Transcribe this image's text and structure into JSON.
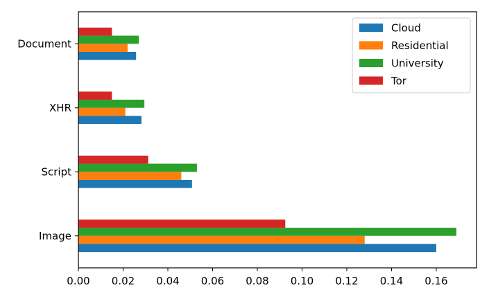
{
  "chart_data": {
    "type": "bar",
    "orientation": "horizontal",
    "categories": [
      "Image",
      "Script",
      "XHR",
      "Document"
    ],
    "series": [
      {
        "name": "Cloud",
        "color": "#1f77b4",
        "values": [
          0.16,
          0.0508,
          0.0282,
          0.0258
        ]
      },
      {
        "name": "Residential",
        "color": "#ff7f0e",
        "values": [
          0.128,
          0.046,
          0.021,
          0.022
        ]
      },
      {
        "name": "University",
        "color": "#2ca02c",
        "values": [
          0.169,
          0.053,
          0.0295,
          0.027
        ]
      },
      {
        "name": "Tor",
        "color": "#d62728",
        "values": [
          0.0925,
          0.0312,
          0.015,
          0.015
        ]
      }
    ],
    "xlim": [
      0,
      0.178
    ],
    "xticks": [
      "0.00",
      "0.02",
      "0.04",
      "0.06",
      "0.08",
      "0.10",
      "0.12",
      "0.14",
      "0.16"
    ],
    "title": "",
    "xlabel": "",
    "ylabel": "",
    "grid": false,
    "legend_position": "top-right"
  }
}
